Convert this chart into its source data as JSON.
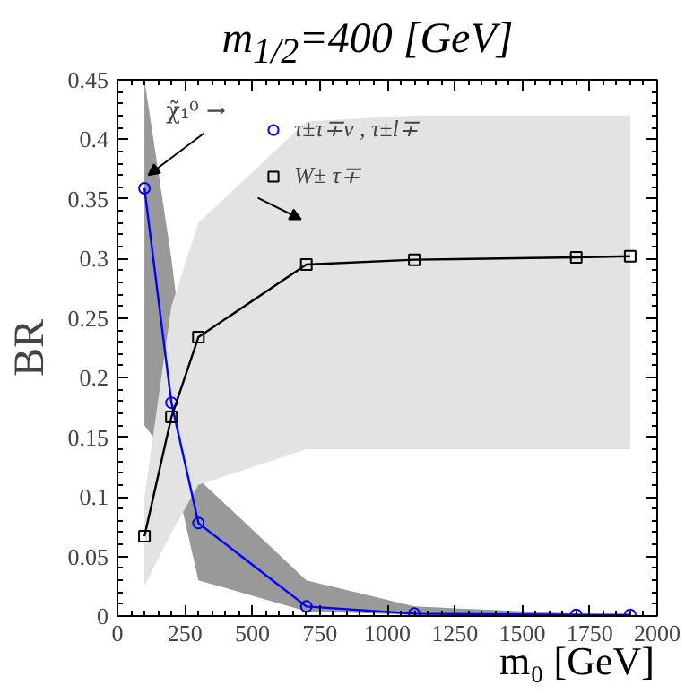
{
  "chart_data": {
    "type": "line",
    "title": "m$_{1/2}$=400 [GeV]",
    "xlabel": "m₀ [GeV]",
    "ylabel": "BR",
    "annotations": [
      {
        "text": "χ̃₁⁰ →",
        "x": 115,
        "y": 0.37
      }
    ],
    "x": [
      100,
      200,
      300,
      700,
      1100,
      1700,
      1900
    ],
    "series": [
      {
        "name": "τ±τ∓ν , τ±l∓",
        "color": "#0000ff",
        "marker": "circle",
        "values": [
          0.359,
          0.179,
          0.078,
          0.008,
          0.002,
          0.001,
          0.001
        ],
        "lower": [
          0.16,
          0.13,
          0.03,
          0.004,
          0.001,
          0.0,
          0.0
        ],
        "upper": [
          0.45,
          0.3,
          0.115,
          0.03,
          0.008,
          0.002,
          0.001
        ]
      },
      {
        "name": "W± τ∓",
        "color": "#000000",
        "marker": "square",
        "values": [
          0.067,
          0.167,
          0.234,
          0.295,
          0.299,
          0.301,
          0.302
        ],
        "lower": [
          0.025,
          0.07,
          0.11,
          0.14,
          0.14,
          0.14,
          0.14
        ],
        "upper": [
          0.1,
          0.26,
          0.33,
          0.415,
          0.42,
          0.42,
          0.42
        ]
      }
    ],
    "xlim": [
      0,
      2000
    ],
    "ylim": [
      0,
      0.45
    ],
    "xticks": [
      0,
      250,
      500,
      750,
      1000,
      1250,
      1500,
      1750,
      2000
    ],
    "yticks": [
      0,
      0.05,
      0.1,
      0.15,
      0.2,
      0.25,
      0.3,
      0.35,
      0.4,
      0.45
    ],
    "legend": "top",
    "grid": false,
    "line_style": "solid"
  }
}
